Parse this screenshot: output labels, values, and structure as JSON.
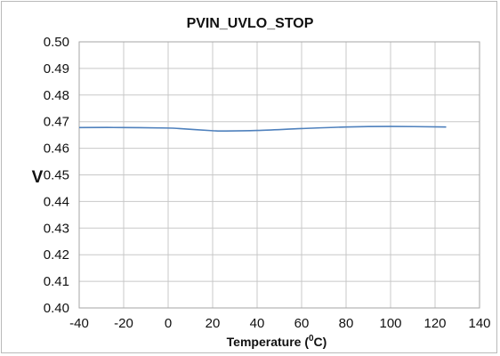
{
  "chart_data": {
    "type": "line",
    "title": "PVIN_UVLO_STOP",
    "xlabel": "Temperature (",
    "xlabel_sup": "0",
    "xlabel_tail": "C)",
    "ylabel": "V",
    "xlim": [
      -40,
      140
    ],
    "ylim": [
      0.4,
      0.5
    ],
    "x_ticks": [
      "-40",
      "-20",
      "0",
      "20",
      "40",
      "60",
      "80",
      "100",
      "120",
      "140"
    ],
    "y_ticks": [
      "0.40",
      "0.41",
      "0.42",
      "0.43",
      "0.44",
      "0.45",
      "0.46",
      "0.47",
      "0.48",
      "0.49",
      "0.50"
    ],
    "grid": true,
    "legend": false,
    "series": [
      {
        "color": "#4f81bd",
        "x": [
          -40,
          -20,
          0,
          5,
          20,
          25,
          40,
          60,
          80,
          100,
          125
        ],
        "y": [
          0.4678,
          0.4678,
          0.4676,
          0.4674,
          0.4666,
          0.4665,
          0.4667,
          0.4674,
          0.468,
          0.4682,
          0.468
        ]
      }
    ]
  }
}
